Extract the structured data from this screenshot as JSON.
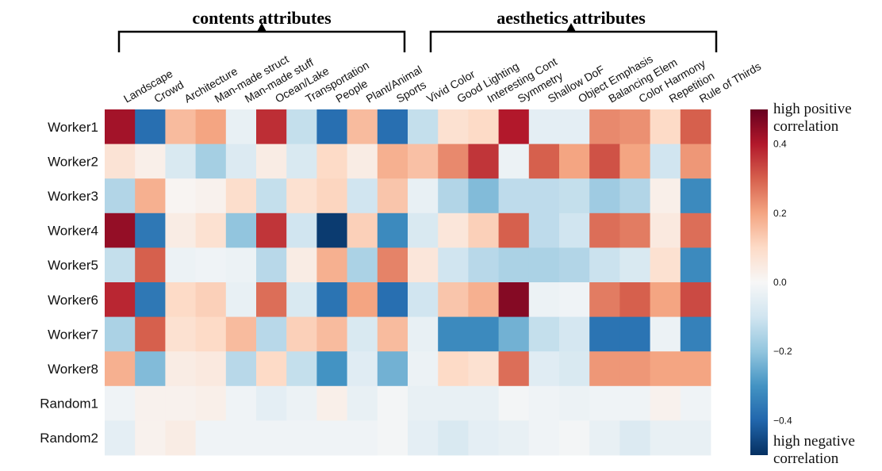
{
  "chart_data": {
    "type": "heatmap",
    "groups": [
      {
        "label": "contents attributes",
        "first_col": 0,
        "last_col": 9
      },
      {
        "label": "aesthetics attributes",
        "first_col": 10,
        "last_col": 19
      }
    ],
    "columns": [
      "Landscape",
      "Crowd",
      "Architecture",
      "Man-made struct",
      "Man-made stuff",
      "Ocean/Lake",
      "Transportation",
      "People",
      "Plant/Animal",
      "Sports",
      "Vivid Color",
      "Good Lighting",
      "Interesting Cont",
      "Symmetry",
      "Shallow DoF",
      "Object Emphasis",
      "Balancing Elem",
      "Color Harmony",
      "Repetition",
      "Rule of Thirds"
    ],
    "rows": [
      "Worker1",
      "Worker2",
      "Worker3",
      "Worker4",
      "Worker5",
      "Worker6",
      "Worker7",
      "Worker8",
      "Random1",
      "Random2"
    ],
    "values": [
      [
        0.42,
        -0.38,
        0.16,
        0.2,
        -0.04,
        0.37,
        -0.12,
        -0.38,
        0.16,
        -0.38,
        -0.12,
        0.08,
        0.1,
        0.4,
        -0.05,
        -0.05,
        0.24,
        0.23,
        0.1,
        0.3
      ],
      [
        0.07,
        0.03,
        -0.08,
        -0.17,
        -0.07,
        0.04,
        -0.08,
        0.1,
        0.04,
        0.18,
        0.15,
        0.24,
        0.36,
        -0.03,
        0.3,
        0.2,
        0.32,
        0.2,
        -0.1,
        0.22
      ],
      [
        -0.15,
        0.18,
        0.01,
        0.02,
        0.09,
        -0.12,
        0.08,
        0.11,
        -0.1,
        0.14,
        -0.04,
        -0.15,
        -0.22,
        -0.13,
        -0.13,
        -0.12,
        -0.18,
        -0.15,
        0.03,
        -0.32
      ],
      [
        0.44,
        -0.36,
        0.04,
        0.08,
        -0.2,
        0.36,
        -0.1,
        -0.48,
        0.12,
        -0.32,
        -0.08,
        0.06,
        0.12,
        0.3,
        -0.13,
        -0.1,
        0.28,
        0.26,
        0.05,
        0.28
      ],
      [
        -0.12,
        0.3,
        -0.03,
        -0.02,
        -0.03,
        -0.14,
        0.04,
        0.18,
        -0.16,
        0.25,
        0.06,
        -0.1,
        -0.14,
        -0.16,
        -0.16,
        -0.15,
        -0.11,
        -0.08,
        0.08,
        -0.32
      ],
      [
        0.38,
        -0.36,
        0.1,
        0.12,
        -0.04,
        0.28,
        -0.08,
        -0.37,
        0.2,
        -0.38,
        -0.1,
        0.14,
        0.18,
        0.46,
        -0.03,
        -0.02,
        0.26,
        0.3,
        0.2,
        0.33
      ],
      [
        -0.16,
        0.3,
        0.08,
        0.1,
        0.16,
        -0.14,
        0.12,
        0.16,
        -0.08,
        0.16,
        -0.04,
        -0.32,
        -0.32,
        -0.24,
        -0.12,
        -0.09,
        -0.37,
        -0.37,
        -0.03,
        -0.34
      ],
      [
        0.18,
        -0.22,
        0.04,
        0.05,
        -0.14,
        0.1,
        -0.12,
        -0.3,
        -0.06,
        -0.24,
        -0.03,
        0.1,
        0.08,
        0.28,
        -0.06,
        -0.08,
        0.22,
        0.22,
        0.2,
        0.2
      ],
      [
        -0.02,
        0.02,
        0.02,
        0.03,
        -0.02,
        -0.05,
        -0.03,
        0.03,
        -0.04,
        -0.01,
        -0.04,
        -0.04,
        -0.04,
        -0.01,
        -0.02,
        -0.03,
        -0.02,
        -0.02,
        0.02,
        -0.02
      ],
      [
        -0.05,
        0.02,
        0.04,
        -0.02,
        -0.02,
        -0.02,
        -0.02,
        -0.02,
        -0.02,
        -0.01,
        -0.05,
        -0.08,
        -0.05,
        -0.04,
        -0.02,
        -0.01,
        -0.04,
        -0.07,
        -0.04,
        -0.04
      ]
    ],
    "colorbar": {
      "range": [
        -0.5,
        0.5
      ],
      "ticks": [
        0.4,
        0.2,
        0.0,
        -0.2,
        -0.4
      ],
      "tick_labels": [
        "0.4",
        "0.2",
        "0.0",
        "−0.2",
        "−0.4"
      ],
      "top_note": [
        "high positive",
        "correlation"
      ],
      "bottom_note": [
        "high negative",
        "correlation"
      ],
      "colormap": "RdBu_r"
    }
  }
}
